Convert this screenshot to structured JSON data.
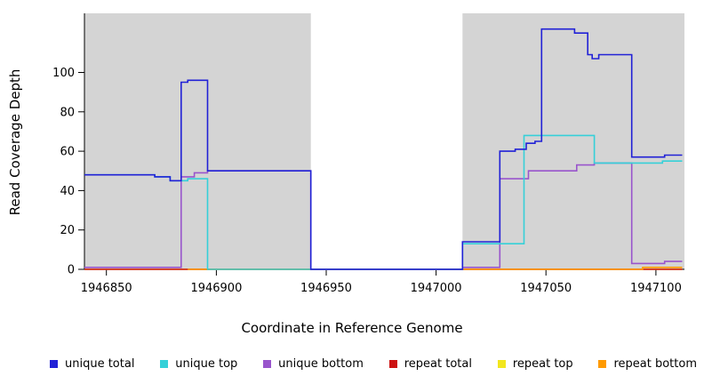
{
  "chart_data": {
    "type": "line",
    "subtype": "step",
    "title": "",
    "xlabel": "Coordinate in Reference Genome",
    "ylabel": "Read Coverage Depth",
    "xlim": [
      1946840,
      1947113
    ],
    "ylim": [
      0,
      130
    ],
    "xticks": [
      1946850,
      1946900,
      1946950,
      1947000,
      1947050,
      1947100
    ],
    "yticks": [
      0,
      20,
      40,
      60,
      80,
      100
    ],
    "grid": false,
    "legend_position": "bottom",
    "plot_background": "#ffffff",
    "shaded_regions": [
      {
        "from": 1946840,
        "to": 1946943,
        "color": "#d4d4d4"
      },
      {
        "from": 1947012,
        "to": 1947113,
        "color": "#d4d4d4"
      }
    ],
    "draw_order": [
      "repeat top",
      "repeat total",
      "repeat bottom",
      "unique bottom",
      "unique top",
      "unique total"
    ],
    "series": [
      {
        "name": "unique total",
        "color": "#2121d6",
        "points": [
          [
            1946840,
            48
          ],
          [
            1946872,
            47
          ],
          [
            1946879,
            45
          ],
          [
            1946884,
            95
          ],
          [
            1946887,
            96
          ],
          [
            1946896,
            50
          ],
          [
            1946943,
            0
          ],
          [
            1947012,
            14
          ],
          [
            1947029,
            60
          ],
          [
            1947036,
            61
          ],
          [
            1947041,
            64
          ],
          [
            1947045,
            65
          ],
          [
            1947048,
            122
          ],
          [
            1947063,
            120
          ],
          [
            1947069,
            109
          ],
          [
            1947071,
            107
          ],
          [
            1947074,
            109
          ],
          [
            1947089,
            57
          ],
          [
            1947104,
            58
          ],
          [
            1947112,
            58
          ]
        ]
      },
      {
        "name": "unique top",
        "color": "#35d0d8",
        "points": [
          [
            1946840,
            48
          ],
          [
            1946872,
            47
          ],
          [
            1946879,
            45
          ],
          [
            1946887,
            46
          ],
          [
            1946896,
            0
          ],
          [
            1947012,
            13
          ],
          [
            1947040,
            68
          ],
          [
            1947072,
            54
          ],
          [
            1947103,
            55
          ],
          [
            1947112,
            55
          ]
        ]
      },
      {
        "name": "unique bottom",
        "color": "#9955cc",
        "points": [
          [
            1946840,
            1
          ],
          [
            1946884,
            47
          ],
          [
            1946890,
            49
          ],
          [
            1946896,
            50
          ],
          [
            1946943,
            0
          ],
          [
            1947012,
            1
          ],
          [
            1947029,
            46
          ],
          [
            1947042,
            50
          ],
          [
            1947064,
            53
          ],
          [
            1947072,
            54
          ],
          [
            1947089,
            3
          ],
          [
            1947104,
            4
          ],
          [
            1947112,
            4
          ]
        ]
      },
      {
        "name": "repeat total",
        "color": "#cc1111",
        "points": [
          [
            1946840,
            0
          ],
          [
            1947112,
            0
          ]
        ]
      },
      {
        "name": "repeat top",
        "color": "#f2e61e",
        "points": [
          [
            1946840,
            0
          ],
          [
            1947112,
            0
          ]
        ]
      },
      {
        "name": "repeat bottom",
        "color": "#ff9a00",
        "points": [
          [
            1946887,
            0
          ],
          [
            1947094,
            1
          ],
          [
            1947112,
            1
          ]
        ]
      }
    ]
  }
}
